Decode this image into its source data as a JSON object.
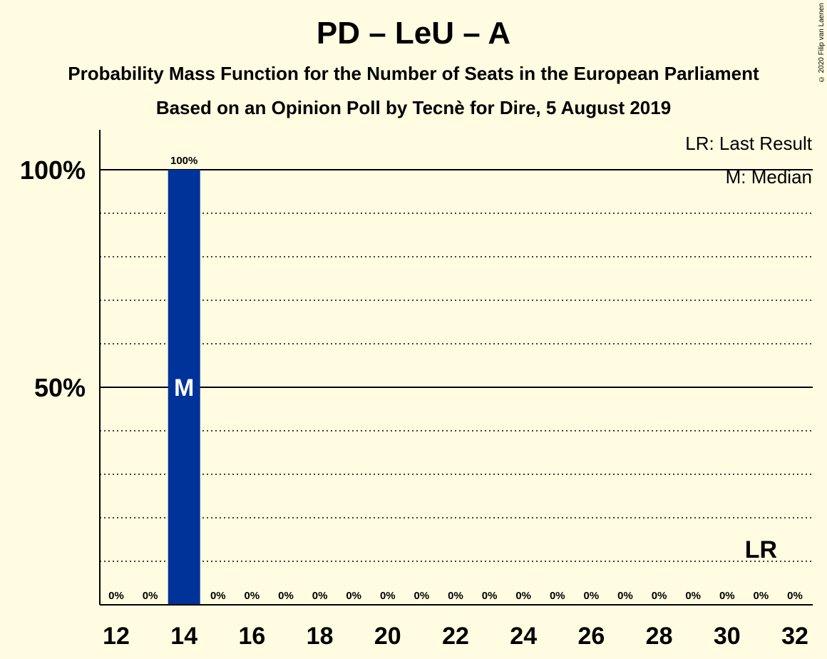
{
  "title": "PD – LeU – A",
  "subtitle_1": "Probability Mass Function for the Number of Seats in the European Parliament",
  "subtitle_2": "Based on an Opinion Poll by Tecnè for Dire, 5 August 2019",
  "copyright": "© 2020 Filip van Laenen",
  "legend": {
    "last_result": "LR: Last Result",
    "median": "M: Median"
  },
  "colors": {
    "background": "#fffce1",
    "bar": "#003399"
  },
  "chart_data": {
    "type": "bar",
    "categories": [
      12,
      13,
      14,
      15,
      16,
      17,
      18,
      19,
      20,
      21,
      22,
      23,
      24,
      25,
      26,
      27,
      28,
      29,
      30,
      31,
      32
    ],
    "values": [
      0,
      0,
      100,
      0,
      0,
      0,
      0,
      0,
      0,
      0,
      0,
      0,
      0,
      0,
      0,
      0,
      0,
      0,
      0,
      0,
      0
    ],
    "value_labels": [
      "0%",
      "0%",
      "100%",
      "0%",
      "0%",
      "0%",
      "0%",
      "0%",
      "0%",
      "0%",
      "0%",
      "0%",
      "0%",
      "0%",
      "0%",
      "0%",
      "0%",
      "0%",
      "0%",
      "0%",
      "0%"
    ],
    "x_tick_labels": [
      "12",
      "14",
      "16",
      "18",
      "20",
      "22",
      "24",
      "26",
      "28",
      "30",
      "32"
    ],
    "y_tick_labels": [
      "50%",
      "100%"
    ],
    "y_major_ticks": [
      50,
      100
    ],
    "y_minor_ticks": [
      10,
      20,
      30,
      40,
      60,
      70,
      80,
      90
    ],
    "ylim": [
      0,
      110
    ],
    "median": 14,
    "median_label": "M",
    "last_result": 31,
    "last_result_label": "LR",
    "legend_position": "top-right",
    "grid": true
  }
}
